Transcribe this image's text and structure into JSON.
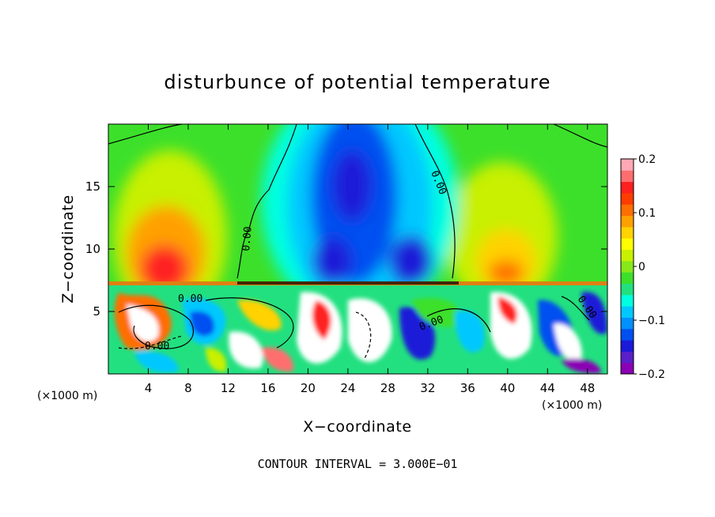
{
  "chart_data": {
    "type": "heatmap",
    "title": "disturbunce of potential temperature",
    "xlabel": "X−coordinate",
    "ylabel": "Z−coordinate",
    "x_unit_label": "(×1000 m)",
    "x_unit_label_right": "(×1000 m)",
    "footer": "CONTOUR INTERVAL = 3.000E−01",
    "xlim": [
      0,
      50
    ],
    "ylim": [
      0,
      20
    ],
    "x_ticks": [
      "4",
      "8",
      "12",
      "16",
      "20",
      "24",
      "28",
      "32",
      "36",
      "40",
      "44",
      "48"
    ],
    "y_ticks": [
      "5",
      "10",
      "15"
    ],
    "colorbar": {
      "range": [
        -0.2,
        0.2
      ],
      "tick_labels": [
        "0.2",
        "0.1",
        "0",
        "−0.1",
        "−0.2"
      ],
      "colors": [
        "#8b00b4",
        "#5a1fc8",
        "#1a1ad8",
        "#0050f0",
        "#0090ff",
        "#00c8ff",
        "#00ffe0",
        "#22e080",
        "#3ce02a",
        "#88e81a",
        "#c8f000",
        "#ffff00",
        "#ffd200",
        "#ffa000",
        "#ff6e00",
        "#ff3c00",
        "#ff2020",
        "#ff6e6e",
        "#ffa8b4"
      ]
    },
    "contour_labels": [
      "0.00",
      "0.00",
      "0.00",
      "0.00",
      "0.00",
      "0.00"
    ]
  }
}
